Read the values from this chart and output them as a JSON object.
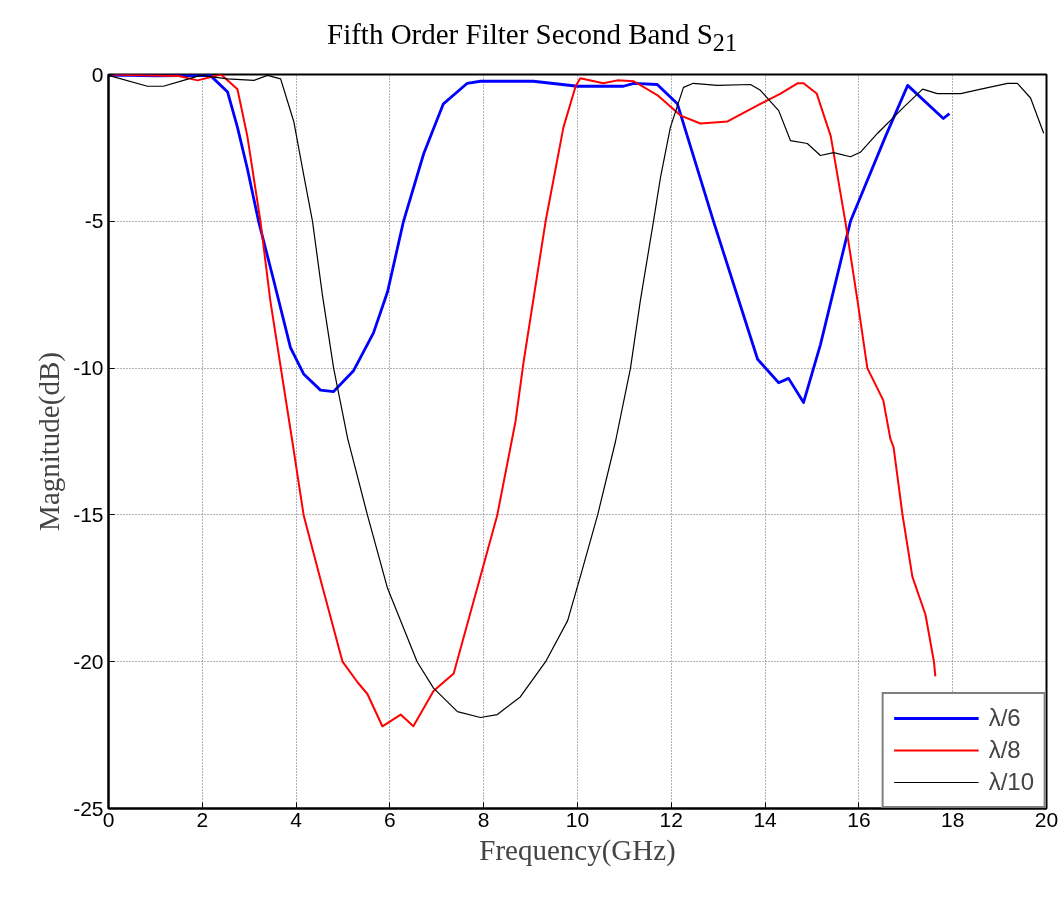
{
  "chart_data": {
    "type": "line",
    "title": "Fifth Order Filter Second Band S$_{21}$",
    "xlabel": "Frequency(GHz)",
    "ylabel": "Magnitude(dB)",
    "xlim": [
      0,
      20
    ],
    "ylim": [
      -25,
      0
    ],
    "xticks": [
      0,
      2,
      4,
      6,
      8,
      10,
      12,
      14,
      16,
      18,
      20
    ],
    "yticks": [
      -25,
      -20,
      -15,
      -10,
      -5,
      0
    ],
    "grid": true,
    "legend": "bottom right",
    "line_style": "solid",
    "marker": "none",
    "series": [
      {
        "name": "λ/6",
        "color": "#0000ff",
        "x": [
          0,
          0.47,
          1.0,
          2.17,
          2.54,
          2.75,
          2.96,
          3.2,
          3.52,
          3.88,
          4.16,
          4.52,
          4.8,
          5.22,
          5.65,
          5.95,
          6.29,
          6.72,
          7.14,
          7.65,
          7.93,
          9.06,
          10.0,
          10.98,
          11.2,
          11.7,
          12.13,
          12.9,
          13.84,
          14.29,
          14.5,
          14.82,
          15.18,
          15.82,
          16.57,
          17.04,
          17.8,
          17.93
        ],
        "values": [
          -0.03,
          -0.03,
          -0.05,
          -0.03,
          -0.6,
          -1.8,
          -3.2,
          -5.0,
          -7.0,
          -9.3,
          -10.2,
          -10.75,
          -10.8,
          -10.1,
          -8.8,
          -7.4,
          -5.0,
          -2.7,
          -1.0,
          -0.3,
          -0.23,
          -0.23,
          -0.4,
          -0.4,
          -0.3,
          -0.34,
          -1.0,
          -5.0,
          -9.7,
          -10.5,
          -10.35,
          -11.17,
          -9.2,
          -5.0,
          -2.1,
          -0.37,
          -1.5,
          -1.33
        ]
      },
      {
        "name": "λ/8",
        "color": "#ff0000",
        "x": [
          0,
          1.5,
          1.9,
          2.4,
          2.75,
          2.96,
          3.24,
          3.45,
          3.92,
          4.16,
          4.52,
          4.99,
          5.31,
          5.52,
          5.84,
          6.23,
          6.5,
          6.93,
          7.36,
          7.93,
          8.29,
          8.68,
          8.85,
          9.32,
          9.7,
          9.96,
          10.06,
          10.55,
          10.85,
          11.2,
          11.7,
          12.2,
          12.62,
          13.2,
          13.9,
          14.33,
          14.69,
          14.82,
          15.1,
          15.4,
          15.71,
          15.97,
          16.18,
          16.52,
          16.67,
          16.74,
          16.93,
          17.14,
          17.42,
          17.6,
          17.63
        ],
        "values": [
          0,
          -0.05,
          -0.2,
          0,
          -0.5,
          -2.1,
          -5.0,
          -7.7,
          -12.5,
          -15.0,
          -17.2,
          -20.0,
          -20.7,
          -21.1,
          -22.2,
          -21.8,
          -22.2,
          -21.0,
          -20.4,
          -17.1,
          -15.0,
          -11.8,
          -9.8,
          -5.0,
          -1.8,
          -0.4,
          -0.13,
          -0.3,
          -0.2,
          -0.23,
          -0.7,
          -1.4,
          -1.67,
          -1.6,
          -1.0,
          -0.65,
          -0.3,
          -0.3,
          -0.65,
          -2.1,
          -5.0,
          -7.7,
          -10.0,
          -11.1,
          -12.4,
          -12.7,
          -15.0,
          -17.1,
          -18.4,
          -20.0,
          -20.5
        ]
      },
      {
        "name": "λ/10",
        "color": "#000000",
        "x": [
          0,
          0.83,
          1.17,
          1.6,
          1.96,
          2.54,
          3.1,
          3.39,
          3.67,
          3.95,
          4.16,
          4.35,
          4.56,
          4.8,
          5.1,
          5.52,
          5.95,
          6.58,
          6.93,
          7.44,
          7.93,
          8.29,
          8.78,
          9.32,
          9.79,
          10.06,
          10.43,
          10.81,
          11.13,
          11.34,
          11.62,
          11.77,
          11.98,
          12.26,
          12.47,
          12.98,
          13.69,
          13.9,
          14.29,
          14.54,
          14.9,
          15.18,
          15.46,
          15.82,
          16.03,
          16.4,
          16.95,
          17.36,
          17.67,
          18.17,
          18.6,
          19.17,
          19.38,
          19.66,
          19.94
        ],
        "values": [
          -0.03,
          -0.4,
          -0.4,
          -0.2,
          -0.03,
          -0.15,
          -0.2,
          -0.03,
          -0.15,
          -1.6,
          -3.4,
          -5.0,
          -7.5,
          -10.0,
          -12.4,
          -15.0,
          -17.5,
          -20.0,
          -20.9,
          -21.7,
          -21.9,
          -21.8,
          -21.2,
          -20.0,
          -18.6,
          -17.1,
          -15.0,
          -12.5,
          -10.0,
          -7.7,
          -5.0,
          -3.5,
          -1.8,
          -0.44,
          -0.3,
          -0.37,
          -0.34,
          -0.54,
          -1.23,
          -2.25,
          -2.35,
          -2.76,
          -2.66,
          -2.8,
          -2.65,
          -2.0,
          -1.12,
          -0.5,
          -0.65,
          -0.65,
          -0.5,
          -0.3,
          -0.3,
          -0.8,
          -2.0
        ]
      }
    ]
  }
}
